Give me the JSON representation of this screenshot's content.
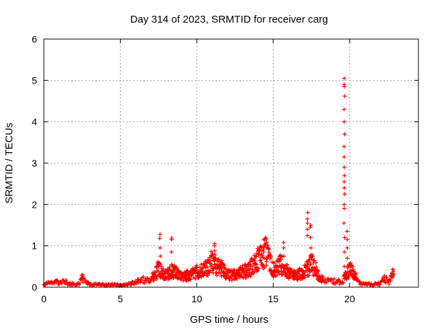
{
  "chart_data": {
    "type": "scatter",
    "title": "Day 314 of 2023, SRMTID for receiver carg",
    "xlabel": "GPS time / hours",
    "ylabel": "SRMTID / TECUs",
    "xlim": [
      0,
      24.5
    ],
    "ylim": [
      0,
      6
    ],
    "xticks": [
      0,
      5,
      10,
      15,
      20
    ],
    "yticks": [
      0,
      1,
      2,
      3,
      4,
      5,
      6
    ],
    "grid": true,
    "marker": "+",
    "color": "#ff0000",
    "series": [
      {
        "name": "SRMTID",
        "profile": {
          "comment": "envelope of the plotted samples (hour, approx. level in TECU)",
          "x": [
            0.0,
            0.3,
            0.6,
            1.0,
            1.3,
            1.6,
            2.0,
            2.3,
            2.5,
            2.8,
            3.0,
            3.5,
            4.0,
            4.5,
            5.0,
            5.5,
            6.0,
            6.5,
            7.0,
            7.5,
            8.0,
            8.5,
            9.0,
            9.5,
            10.0,
            10.5,
            11.0,
            11.3,
            11.6,
            12.0,
            12.5,
            13.0,
            13.5,
            14.0,
            14.5,
            15.0,
            15.5,
            16.0,
            16.5,
            17.0,
            17.5,
            18.0,
            18.5,
            19.0,
            19.5,
            20.0,
            20.3,
            20.6,
            21.0,
            21.5,
            22.0,
            22.3,
            22.6,
            22.9
          ],
          "y": [
            0.05,
            0.12,
            0.15,
            0.1,
            0.16,
            0.08,
            0.07,
            0.1,
            0.24,
            0.12,
            0.06,
            0.06,
            0.05,
            0.06,
            0.05,
            0.07,
            0.12,
            0.18,
            0.16,
            0.45,
            0.3,
            0.38,
            0.26,
            0.28,
            0.38,
            0.42,
            0.65,
            0.5,
            0.45,
            0.3,
            0.3,
            0.36,
            0.45,
            0.65,
            0.85,
            0.4,
            0.55,
            0.35,
            0.3,
            0.35,
            0.6,
            0.25,
            0.15,
            0.15,
            0.12,
            0.45,
            0.3,
            0.1,
            0.08,
            0.06,
            0.1,
            0.22,
            0.1,
            0.4
          ]
        },
        "spikes": [
          {
            "x": 7.6,
            "values": [
              0.55,
              0.75,
              0.95,
              1.18,
              1.28
            ]
          },
          {
            "x": 8.35,
            "values": [
              0.55,
              0.85,
              1.15,
              1.19
            ]
          },
          {
            "x": 11.15,
            "values": [
              0.7,
              0.88,
              1.0,
              1.05
            ]
          },
          {
            "x": 14.4,
            "values": [
              0.85,
              0.95,
              1.02
            ]
          },
          {
            "x": 15.7,
            "values": [
              0.75,
              0.95,
              1.08
            ]
          },
          {
            "x": 17.25,
            "values": [
              1.25,
              1.4,
              1.55,
              1.65,
              1.8
            ]
          },
          {
            "x": 17.45,
            "values": [
              0.75,
              0.95,
              1.2,
              1.45,
              1.5
            ]
          },
          {
            "x": 19.65,
            "values": [
              0.2,
              0.5,
              0.85,
              1.2,
              1.55,
              1.9,
              2.0,
              2.25,
              2.4,
              2.55,
              2.7,
              2.9,
              3.15,
              3.4,
              3.7,
              4.0,
              4.3,
              4.62,
              4.85,
              4.9,
              5.05
            ]
          },
          {
            "x": 19.85,
            "values": [
              0.7,
              0.95,
              1.15,
              1.35
            ]
          }
        ]
      }
    ]
  }
}
